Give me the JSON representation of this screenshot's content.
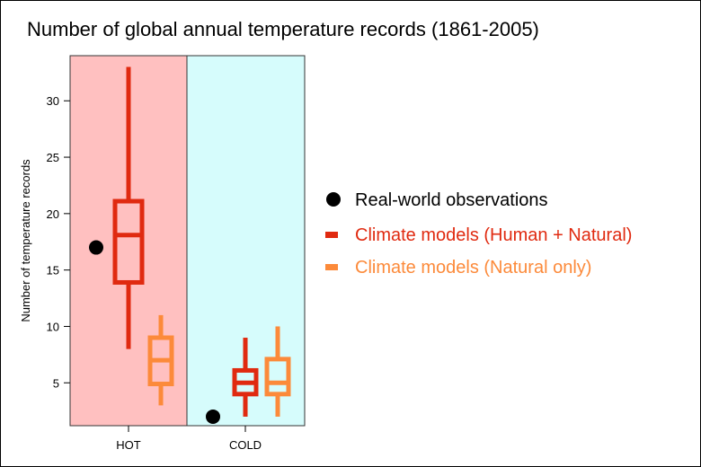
{
  "chart_data": {
    "type": "boxplot",
    "title": "Number of global annual temperature records (1861-2005)",
    "ylabel": "Number of temperature records",
    "xlabel": "",
    "ylim": [
      1.2,
      34.0
    ],
    "yticks": [
      5,
      10,
      15,
      20,
      25,
      30
    ],
    "grid": false,
    "legend_position": "right",
    "categories": [
      {
        "label": "HOT",
        "background": "#ffc0c0"
      },
      {
        "label": "COLD",
        "background": "#d6fcfc"
      }
    ],
    "observations": {
      "name": "Real-world observations",
      "color": "#000000",
      "values": [
        17,
        2
      ]
    },
    "series": [
      {
        "name": "Climate models (Human + Natural)",
        "color": "#e02a10",
        "boxes": [
          {
            "min": 8,
            "q1": 13.9,
            "median": 18.1,
            "q3": 21.1,
            "max": 33
          },
          {
            "min": 2,
            "q1": 4,
            "median": 5,
            "q3": 6.1,
            "max": 9
          }
        ]
      },
      {
        "name": "Climate models (Natural only)",
        "color": "#fc8a3a",
        "boxes": [
          {
            "min": 3,
            "q1": 4.9,
            "median": 7,
            "q3": 9,
            "max": 11
          },
          {
            "min": 2,
            "q1": 4,
            "median": 5,
            "q3": 7.1,
            "max": 10
          }
        ]
      }
    ]
  }
}
